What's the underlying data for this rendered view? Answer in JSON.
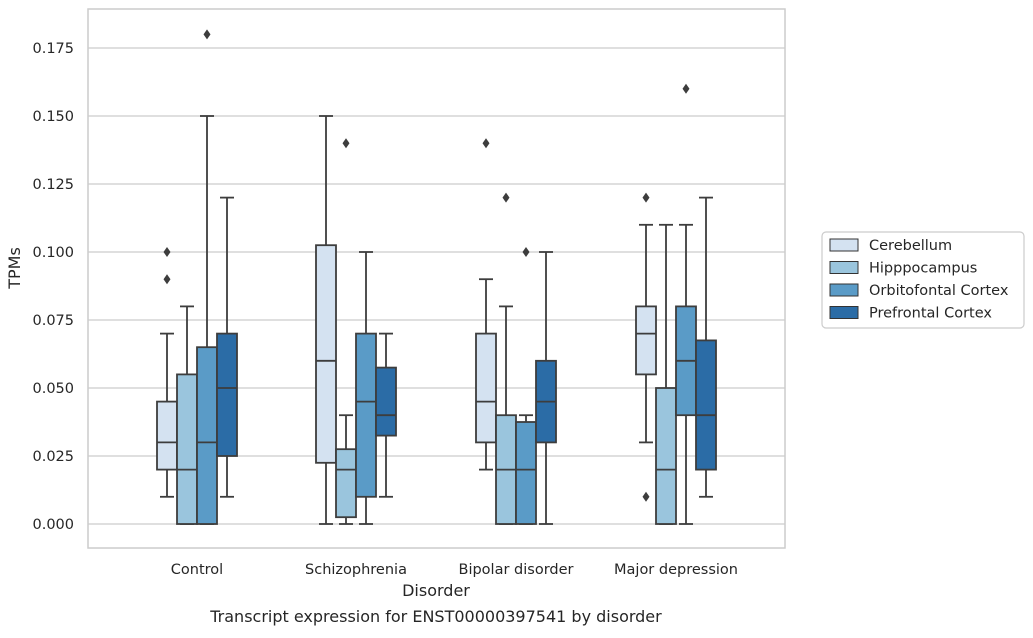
{
  "chart_data": {
    "type": "box",
    "title": "",
    "xlabel": "Disorder",
    "ylabel": "TPMs",
    "caption": "Transcript expression for ENST00000397541 by disorder",
    "ylim": [
      -0.009,
      0.181
    ],
    "yticks": [
      0.0,
      0.025,
      0.05,
      0.075,
      0.1,
      0.125,
      0.15,
      0.175
    ],
    "ytick_labels": [
      "0.000",
      "0.025",
      "0.050",
      "0.075",
      "0.100",
      "0.125",
      "0.150",
      "0.175"
    ],
    "grid": true,
    "legend_position": "right",
    "categories": [
      "Control",
      "Schizophrenia",
      "Bipolar disorder",
      "Major depression"
    ],
    "series": [
      {
        "name": "Cerebellum",
        "color": "#d4e2f1",
        "boxes": [
          {
            "whislo": 0.01,
            "q1": 0.02,
            "med": 0.03,
            "q3": 0.045,
            "whishi": 0.07,
            "fliers": [
              0.09,
              0.1
            ]
          },
          {
            "whislo": 0.0,
            "q1": 0.0225,
            "med": 0.06,
            "q3": 0.1025,
            "whishi": 0.15,
            "fliers": []
          },
          {
            "whislo": 0.02,
            "q1": 0.03,
            "med": 0.045,
            "q3": 0.07,
            "whishi": 0.09,
            "fliers": [
              0.14
            ]
          },
          {
            "whislo": 0.03,
            "q1": 0.055,
            "med": 0.07,
            "q3": 0.08,
            "whishi": 0.11,
            "fliers": [
              0.01,
              0.12
            ]
          }
        ]
      },
      {
        "name": "Hipppocampus",
        "color": "#9ac5dd",
        "boxes": [
          {
            "whislo": 0.0,
            "q1": 0.0,
            "med": 0.02,
            "q3": 0.055,
            "whishi": 0.08,
            "fliers": []
          },
          {
            "whislo": 0.0,
            "q1": 0.0025,
            "med": 0.02,
            "q3": 0.0275,
            "whishi": 0.04,
            "fliers": [
              0.14
            ]
          },
          {
            "whislo": 0.0,
            "q1": 0.0,
            "med": 0.02,
            "q3": 0.04,
            "whishi": 0.08,
            "fliers": [
              0.12
            ]
          },
          {
            "whislo": 0.0,
            "q1": 0.0,
            "med": 0.02,
            "q3": 0.05,
            "whishi": 0.11,
            "fliers": []
          }
        ]
      },
      {
        "name": "Orbitofontal Cortex",
        "color": "#5a9bc7",
        "boxes": [
          {
            "whislo": 0.0,
            "q1": 0.0,
            "med": 0.03,
            "q3": 0.065,
            "whishi": 0.15,
            "fliers": [
              0.18
            ]
          },
          {
            "whislo": 0.0,
            "q1": 0.01,
            "med": 0.045,
            "q3": 0.07,
            "whishi": 0.1,
            "fliers": []
          },
          {
            "whislo": 0.0,
            "q1": 0.0,
            "med": 0.02,
            "q3": 0.0375,
            "whishi": 0.04,
            "fliers": [
              0.1
            ]
          },
          {
            "whislo": 0.0,
            "q1": 0.04,
            "med": 0.06,
            "q3": 0.08,
            "whishi": 0.11,
            "fliers": [
              0.16
            ]
          }
        ]
      },
      {
        "name": "Prefrontal Cortex",
        "color": "#2b6ca6",
        "boxes": [
          {
            "whislo": 0.01,
            "q1": 0.025,
            "med": 0.05,
            "q3": 0.07,
            "whishi": 0.12,
            "fliers": []
          },
          {
            "whislo": 0.01,
            "q1": 0.0325,
            "med": 0.04,
            "q3": 0.0575,
            "whishi": 0.07,
            "fliers": []
          },
          {
            "whislo": 0.0,
            "q1": 0.03,
            "med": 0.045,
            "q3": 0.06,
            "whishi": 0.1,
            "fliers": []
          },
          {
            "whislo": 0.01,
            "q1": 0.02,
            "med": 0.04,
            "q3": 0.0675,
            "whishi": 0.12,
            "fliers": []
          }
        ]
      }
    ]
  },
  "colors": {
    "line": "#3d3d3d",
    "grid": "#cccccc",
    "frame": "#cccccc",
    "legend_border": "#cccccc"
  }
}
